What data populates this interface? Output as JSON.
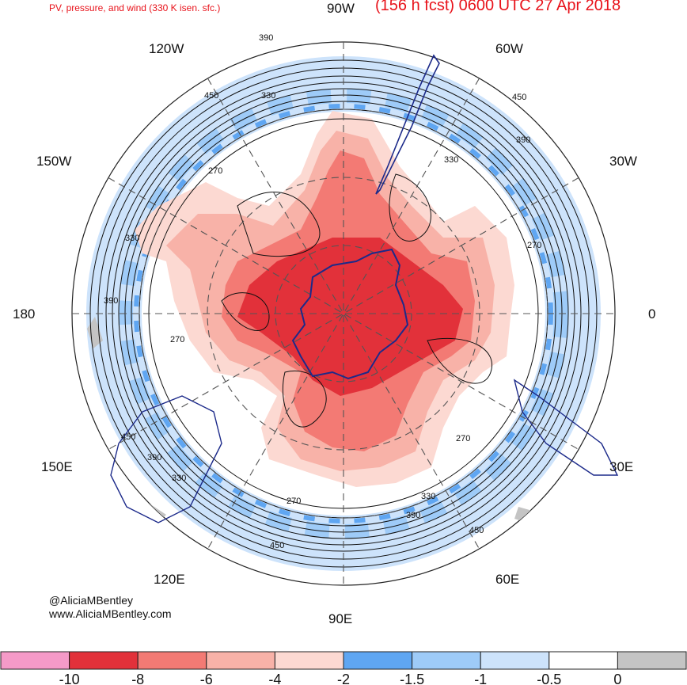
{
  "title": "PV, pressure, and wind (330 K isen. sfc.)",
  "forecast": "(156 h fcst) 0600 UTC 27 Apr 2018",
  "credit": {
    "handle": "@AliciaMBentley",
    "website": "www.AliciaMBentley.com"
  },
  "longitude_labels": {
    "top": "90W",
    "upper_left_1": "120W",
    "upper_right_1": "60W",
    "upper_left_2": "150W",
    "upper_right_2": "30W",
    "left": "180",
    "right": "0",
    "lower_left_2": "150E",
    "lower_right_2": "30E",
    "lower_left_1": "120E",
    "lower_right_1": "60E",
    "bottom": "90E"
  },
  "contour_labels": [
    "390",
    "450",
    "330",
    "270",
    "330",
    "390",
    "270",
    "270",
    "330",
    "390",
    "450",
    "390",
    "330",
    "270",
    "450",
    "330",
    "390",
    "450",
    "270",
    "450"
  ],
  "colorbar": {
    "bins": [
      {
        "color": "#f59ac8"
      },
      {
        "color": "#e2313a"
      },
      {
        "color": "#f37a74"
      },
      {
        "color": "#f8b2a8"
      },
      {
        "color": "#fcd9d2"
      },
      {
        "color": "#5fa6f2"
      },
      {
        "color": "#9ecbf8"
      },
      {
        "color": "#cde3fb"
      },
      {
        "color": "#ffffff"
      },
      {
        "color": "#c4c4c4"
      }
    ],
    "tick_labels": [
      "-10",
      "-8",
      "-6",
      "-4",
      "-2",
      "-1.5",
      "-1",
      "-0.5",
      "0"
    ]
  }
}
